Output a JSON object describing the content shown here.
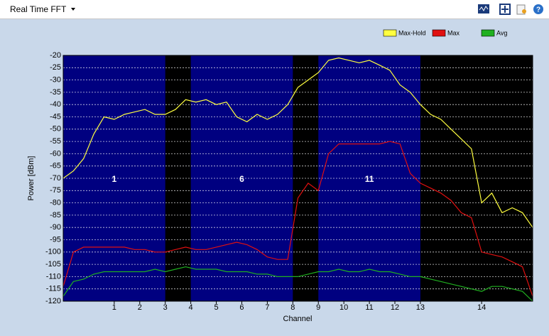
{
  "toolbar": {
    "title": "Real Time FFT"
  },
  "chart_data": {
    "type": "line",
    "x_label": "Channel",
    "y_label": "Power [dBm]",
    "x": [
      2402,
      2404,
      2406,
      2408,
      2410,
      2412,
      2414,
      2416,
      2418,
      2420,
      2422,
      2424,
      2426,
      2428,
      2430,
      2432,
      2434,
      2436,
      2438,
      2440,
      2442,
      2444,
      2446,
      2448,
      2450,
      2452,
      2454,
      2456,
      2458,
      2460,
      2462,
      2464,
      2466,
      2468,
      2470,
      2472,
      2474,
      2476,
      2478,
      2480,
      2482,
      2484,
      2486,
      2488,
      2490,
      2492,
      2494
    ],
    "series": [
      {
        "name": "Max-Hold",
        "color": "#ffff40",
        "values": [
          -70,
          -67,
          -62,
          -52,
          -45,
          -46,
          -44,
          -43,
          -42,
          -44,
          -44,
          -42,
          -38,
          -39,
          -38,
          -40,
          -39,
          -45,
          -47,
          -44,
          -46,
          -44,
          -40,
          -33,
          -30,
          -27,
          -22,
          -21,
          -22,
          -23,
          -22,
          -24,
          -26,
          -32,
          -35,
          -40,
          -44,
          -46,
          -50,
          -54,
          -58,
          -80,
          -76,
          -84,
          -82,
          -84,
          -90
        ]
      },
      {
        "name": "Max",
        "color": "#e01010",
        "values": [
          -114,
          -100,
          -98,
          -98,
          -98,
          -98,
          -98,
          -99,
          -99,
          -100,
          -100,
          -99,
          -98,
          -99,
          -99,
          -98,
          -97,
          -96,
          -97,
          -99,
          -102,
          -103,
          -103,
          -78,
          -72,
          -75,
          -60,
          -56,
          -56,
          -56,
          -56,
          -56,
          -55,
          -56,
          -68,
          -72,
          -74,
          -76,
          -79,
          -84,
          -86,
          -100,
          -101,
          -102,
          -104,
          -106,
          -118
        ]
      },
      {
        "name": "Avg",
        "color": "#20b020",
        "values": [
          -118,
          -112,
          -111,
          -109,
          -108,
          -108,
          -108,
          -108,
          -108,
          -107,
          -108,
          -107,
          -106,
          -107,
          -107,
          -107,
          -108,
          -108,
          -108,
          -109,
          -109,
          -110,
          -110,
          -110,
          -109,
          -108,
          -108,
          -107,
          -108,
          -108,
          -107,
          -108,
          -108,
          -109,
          -110,
          -110,
          -111,
          -112,
          -113,
          -114,
          -115,
          -116,
          -114,
          -114,
          -115,
          -116,
          -120
        ]
      }
    ],
    "xlim": [
      2402,
      2494
    ],
    "ylim": [
      -120,
      -20
    ],
    "xticks": [
      {
        "value": 2412,
        "label": "1"
      },
      {
        "value": 2417,
        "label": "2"
      },
      {
        "value": 2422,
        "label": "3"
      },
      {
        "value": 2427,
        "label": "4"
      },
      {
        "value": 2432,
        "label": "5"
      },
      {
        "value": 2437,
        "label": "6"
      },
      {
        "value": 2442,
        "label": "7"
      },
      {
        "value": 2447,
        "label": "8"
      },
      {
        "value": 2452,
        "label": "9"
      },
      {
        "value": 2457,
        "label": "10"
      },
      {
        "value": 2462,
        "label": "11"
      },
      {
        "value": 2467,
        "label": "12"
      },
      {
        "value": 2472,
        "label": "13"
      },
      {
        "value": 2484,
        "label": "14"
      }
    ],
    "yticks": [
      -20,
      -25,
      -30,
      -35,
      -40,
      -45,
      -50,
      -55,
      -60,
      -65,
      -70,
      -75,
      -80,
      -85,
      -90,
      -95,
      -100,
      -105,
      -110,
      -115,
      -120
    ],
    "grid": true,
    "plot_background": "#000000",
    "bands": [
      {
        "from": 2402,
        "to": 2422,
        "label": "1",
        "color": "#000080"
      },
      {
        "from": 2427,
        "to": 2447,
        "label": "6",
        "color": "#000080"
      },
      {
        "from": 2452,
        "to": 2472,
        "label": "11",
        "color": "#000080"
      }
    ],
    "legend": "top-right"
  }
}
